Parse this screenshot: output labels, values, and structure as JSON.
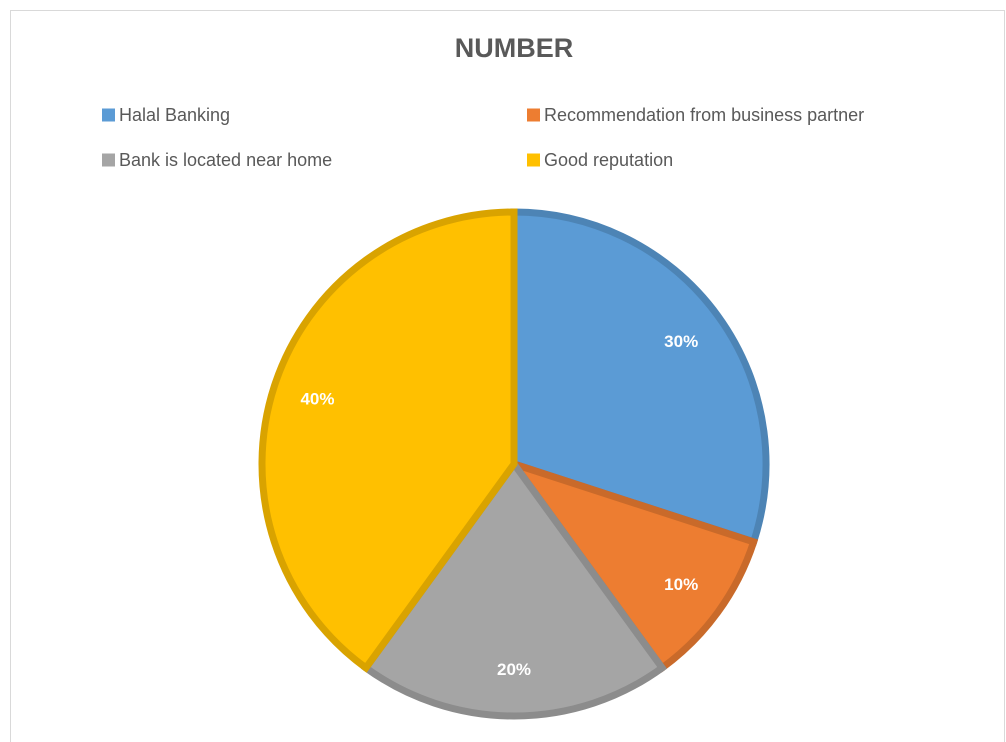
{
  "chart_data": {
    "type": "pie",
    "title": "NUMBER",
    "categories": [
      "Halal Banking",
      "Recommendation from business partner",
      "Bank is located near home",
      "Good reputation"
    ],
    "values": [
      30,
      10,
      20,
      40
    ],
    "value_labels": [
      "30%",
      "10%",
      "20%",
      "40%"
    ],
    "colors": [
      "#5b9bd5",
      "#ed7d31",
      "#a5a5a5",
      "#ffc000"
    ]
  }
}
